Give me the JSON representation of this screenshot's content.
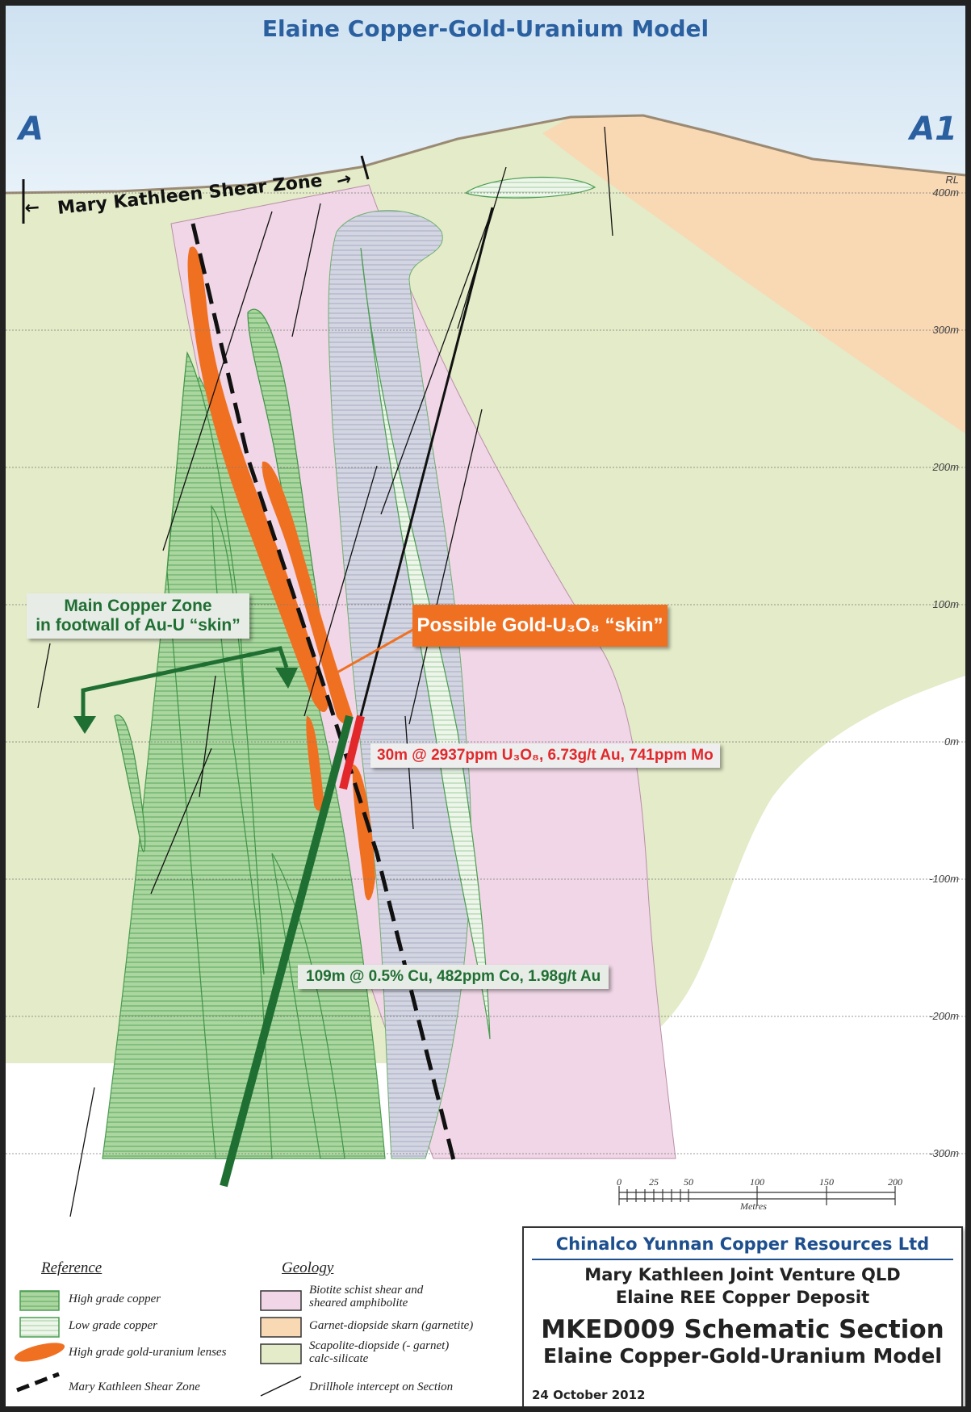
{
  "diagram": {
    "title": "Elaine Copper-Gold-Uranium Model",
    "left_end": "A",
    "right_end": "A1",
    "rl_label": "RL",
    "elevations": [
      "400m",
      "300m",
      "200m",
      "100m",
      "0m",
      "-100m",
      "-200m",
      "-300m"
    ],
    "shear_zone_label": "Mary Kathleen Shear Zone",
    "callouts": {
      "main_copper_line1": "Main Copper Zone",
      "main_copper_line2": "in footwall of Au-U “skin”",
      "gold_skin": "Possible Gold-U₃O₈ “skin”",
      "intercept_u": "30m @ 2937ppm U₃O₈, 6.73g/t Au, 741ppm Mo",
      "intercept_cu": "109m @ 0.5% Cu, 482ppm Co, 1.98g/t Au"
    },
    "scale": {
      "ticks": [
        "0",
        "25",
        "50",
        "100",
        "150",
        "200"
      ],
      "unit": "Metres"
    },
    "colors": {
      "sky": "#dcebf5",
      "calc_silicate": "#e3ebc8",
      "schist": "#f0d6e6",
      "skarn": "#f9d8b4",
      "copper_high": "#a6d29a",
      "copper_low": "#e8f3e6",
      "gold_lens": "#f07022",
      "title_blue": "#2a5fa0"
    }
  },
  "legend": {
    "reference_heading": "Reference",
    "reference_items": [
      "High grade copper",
      "Low grade copper",
      "High grade gold-uranium lenses",
      "Mary Kathleen Shear Zone"
    ],
    "geology_heading": "Geology",
    "geology_items": [
      {
        "line1": "Biotite schist shear and",
        "line2": "sheared amphibolite"
      },
      {
        "line1": "Garnet-diopside skarn (garnetite)",
        "line2": ""
      },
      {
        "line1": "Scapolite-diopside (- garnet)",
        "line2": "calc-silicate"
      },
      {
        "line1": "Drillhole intercept on Section",
        "line2": ""
      }
    ]
  },
  "title_block": {
    "company": "Chinalco Yunnan Copper Resources Ltd",
    "line2": "Mary Kathleen Joint Venture QLD",
    "line3": "Elaine REE Copper Deposit",
    "line4": "MKED009 Schematic Section",
    "line5": "Elaine Copper-Gold-Uranium Model",
    "date": "24 October 2012"
  }
}
